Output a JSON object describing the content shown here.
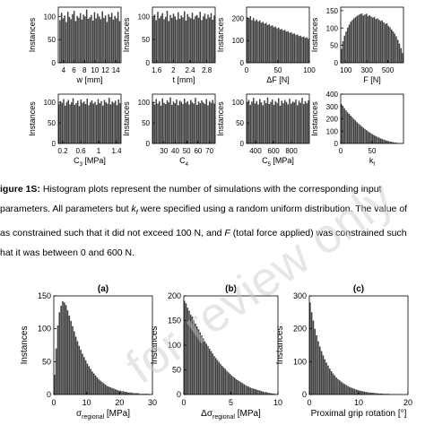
{
  "caption": {
    "label": "igure 1S:",
    "line1": " Histogram plots represent the number of simulations with the corresponding input",
    "line2a": "parameters. All parameters but ",
    "line2_k": "k",
    "line2_sub": "f",
    "line2b": " were specified using a random uniform distribution. The value of",
    "line3a": "as constrained such that it did not exceed 100 N, and ",
    "line3_f": "F",
    "line3b": " (total force applied) was constrained such",
    "line4": "hat it was between 0 and 600 N."
  },
  "watermark": {
    "text": "for review only",
    "color": "#c8c8c8"
  },
  "bar_color": "#404040",
  "chart_data": [
    {
      "id": "w",
      "type": "bar",
      "ylabel": "Instances",
      "xlabel": "w [mm]",
      "xlim": [
        3,
        15
      ],
      "ylim": [
        0,
        120
      ],
      "xticks": [
        4,
        6,
        8,
        10,
        12,
        14
      ],
      "yticks": [
        0,
        50,
        100
      ],
      "xtick_labels": [
        "4",
        "6",
        "8",
        "10",
        "12",
        "14"
      ],
      "ytick_labels": [
        "0",
        "50",
        "100"
      ],
      "bins": 40,
      "values": [
        92,
        108,
        96,
        102,
        88,
        110,
        99,
        94,
        105,
        112,
        90,
        101,
        97,
        107,
        93,
        104,
        100,
        115,
        95,
        98,
        103,
        91,
        109,
        96,
        106,
        100,
        94,
        111,
        97,
        102,
        88,
        105,
        99,
        108,
        93,
        101,
        96,
        110,
        90,
        103
      ]
    },
    {
      "id": "t",
      "type": "bar",
      "ylabel": "Instances",
      "xlabel": "t [mm]",
      "xlim": [
        1.5,
        3.0
      ],
      "ylim": [
        0,
        120
      ],
      "xticks": [
        1.6,
        2.0,
        2.4,
        2.8
      ],
      "yticks": [
        0,
        50,
        100
      ],
      "xtick_labels": [
        "1.6",
        "2",
        "2.4",
        "2.8"
      ],
      "ytick_labels": [
        "0",
        "50",
        "100"
      ],
      "bins": 40,
      "values": [
        98,
        104,
        92,
        110,
        96,
        101,
        107,
        94,
        99,
        112,
        90,
        103,
        97,
        106,
        100,
        93,
        109,
        95,
        102,
        98,
        111,
        91,
        105,
        99,
        96,
        108,
        94,
        101,
        103,
        97,
        110,
        92,
        100,
        106,
        95,
        104,
        98,
        107,
        93,
        102
      ]
    },
    {
      "id": "dF",
      "type": "bar",
      "ylabel": "Instances",
      "xlabel": "ΔF [N]",
      "xlim": [
        0,
        100
      ],
      "ylim": [
        0,
        250
      ],
      "xticks": [
        0,
        50,
        100
      ],
      "yticks": [
        0,
        100,
        200
      ],
      "xtick_labels": [
        "0",
        "50",
        "100"
      ],
      "ytick_labels": [
        "0",
        "100",
        "200"
      ],
      "bins": 40,
      "values": [
        205,
        198,
        210,
        192,
        201,
        188,
        195,
        186,
        190,
        180,
        184,
        176,
        179,
        170,
        174,
        166,
        168,
        160,
        163,
        155,
        158,
        150,
        152,
        146,
        148,
        140,
        142,
        135,
        137,
        130,
        132,
        125,
        127,
        120,
        122,
        116,
        118,
        112,
        114,
        108
      ]
    },
    {
      "id": "F",
      "type": "bar",
      "ylabel": "Instances",
      "xlabel": "F [N]",
      "xlim": [
        50,
        650
      ],
      "ylim": [
        0,
        160
      ],
      "xticks": [
        100,
        300,
        500
      ],
      "yticks": [
        0,
        50,
        100,
        150
      ],
      "xtick_labels": [
        "100",
        "300",
        "500"
      ],
      "ytick_labels": [
        "0",
        "50",
        "100",
        "150"
      ],
      "bins": 40,
      "values": [
        40,
        62,
        78,
        90,
        101,
        110,
        118,
        123,
        128,
        131,
        135,
        138,
        140,
        142,
        136,
        139,
        141,
        134,
        137,
        133,
        130,
        132,
        126,
        128,
        124,
        120,
        122,
        116,
        112,
        114,
        106,
        102,
        96,
        90,
        84,
        76,
        66,
        55,
        42,
        28
      ]
    },
    {
      "id": "C3",
      "type": "bar",
      "ylabel": "Instances",
      "xlabel": "C3 [MPa]",
      "xlim": [
        0.1,
        1.5
      ],
      "ylim": [
        0,
        120
      ],
      "xticks": [
        0.2,
        0.6,
        1.0,
        1.4
      ],
      "yticks": [
        0,
        50,
        100
      ],
      "xtick_labels": [
        "0.2",
        "0.6",
        "1",
        "1.4"
      ],
      "ytick_labels": [
        "0",
        "50",
        "100"
      ],
      "bins": 40,
      "values": [
        96,
        103,
        99,
        108,
        92,
        101,
        106,
        95,
        100,
        110,
        94,
        98,
        104,
        91,
        107,
        99,
        102,
        96,
        109,
        93,
        100,
        105,
        97,
        101,
        94,
        108,
        98,
        103,
        92,
        106,
        100,
        97,
        111,
        95,
        102,
        99,
        104,
        93,
        107,
        98
      ]
    },
    {
      "id": "C4",
      "type": "bar",
      "ylabel": "Instances",
      "xlabel": "C4",
      "xlim": [
        20,
        75
      ],
      "ylim": [
        0,
        120
      ],
      "xticks": [
        30,
        40,
        50,
        60,
        70
      ],
      "yticks": [
        0,
        50,
        100
      ],
      "xtick_labels": [
        "30",
        "40",
        "50",
        "60",
        "70"
      ],
      "ytick_labels": [
        "0",
        "50",
        "100"
      ],
      "bins": 40,
      "values": [
        101,
        95,
        108,
        97,
        103,
        92,
        110,
        99,
        96,
        105,
        100,
        112,
        94,
        102,
        98,
        107,
        93,
        104,
        101,
        96,
        109,
        99,
        103,
        95,
        106,
        100,
        97,
        111,
        94,
        102,
        98,
        105,
        100,
        96,
        108,
        93,
        103,
        99,
        106,
        97
      ]
    },
    {
      "id": "C5",
      "type": "bar",
      "ylabel": "Instances",
      "xlabel": "C5 [MPa]",
      "xlim": [
        300,
        1000
      ],
      "ylim": [
        0,
        120
      ],
      "xticks": [
        400,
        600,
        800
      ],
      "yticks": [
        0,
        50,
        100
      ],
      "xtick_labels": [
        "400",
        "600",
        "800"
      ],
      "ytick_labels": [
        "0",
        "50",
        "100"
      ],
      "bins": 40,
      "values": [
        99,
        106,
        94,
        102,
        111,
        97,
        103,
        95,
        108,
        100,
        93,
        105,
        98,
        112,
        96,
        101,
        107,
        94,
        103,
        99,
        110,
        92,
        104,
        98,
        106,
        101,
        95,
        109,
        97,
        102,
        100,
        107,
        93,
        104,
        99,
        111,
        96,
        103,
        98,
        105
      ]
    },
    {
      "id": "kf",
      "type": "bar",
      "ylabel": "Instances",
      "xlabel": "kf",
      "xlim": [
        0,
        100
      ],
      "ylim": [
        0,
        400
      ],
      "xticks": [
        0,
        50
      ],
      "yticks": [
        0,
        100,
        200,
        300,
        400
      ],
      "xtick_labels": [
        "0",
        "50"
      ],
      "ytick_labels": [
        "0",
        "100",
        "200",
        "300",
        "400"
      ],
      "bins": 40,
      "values": [
        320,
        300,
        285,
        268,
        252,
        240,
        225,
        212,
        198,
        186,
        172,
        160,
        150,
        138,
        128,
        118,
        108,
        98,
        90,
        82,
        74,
        66,
        60,
        53,
        47,
        41,
        36,
        31,
        27,
        23,
        19,
        16,
        13,
        10,
        8,
        6,
        4,
        3,
        2,
        1
      ]
    },
    {
      "id": "a",
      "panel_title": "(a)",
      "type": "bar",
      "ylabel": "Instances",
      "xlabel": "σ regional [MPa]",
      "xlim": [
        0,
        30
      ],
      "ylim": [
        0,
        150
      ],
      "xticks": [
        0,
        10,
        20,
        30
      ],
      "yticks": [
        0,
        50,
        100,
        150
      ],
      "xtick_labels": [
        "0",
        "10",
        "20",
        "30"
      ],
      "ytick_labels": [
        "0",
        "50",
        "100",
        "150"
      ],
      "bins": 60,
      "values": [
        30,
        70,
        105,
        125,
        135,
        142,
        140,
        136,
        128,
        120,
        112,
        104,
        96,
        88,
        81,
        74,
        68,
        62,
        57,
        52,
        47,
        43,
        39,
        35,
        32,
        29,
        26,
        23,
        21,
        19,
        17,
        15,
        13,
        12,
        11,
        10,
        9,
        8,
        7,
        6,
        6,
        5,
        5,
        4,
        4,
        3,
        3,
        3,
        2,
        2,
        2,
        2,
        1,
        1,
        1,
        1,
        1,
        1,
        0,
        0
      ]
    },
    {
      "id": "b",
      "panel_title": "(b)",
      "type": "bar",
      "ylabel": "Instances",
      "xlabel": "Δσ regional [MPa]",
      "xlim": [
        0,
        10
      ],
      "ylim": [
        0,
        200
      ],
      "xticks": [
        0,
        5,
        10
      ],
      "yticks": [
        0,
        50,
        100,
        150,
        200
      ],
      "xtick_labels": [
        "0",
        "5",
        "10"
      ],
      "ytick_labels": [
        "0",
        "50",
        "100",
        "150",
        "200"
      ],
      "bins": 60,
      "values": [
        190,
        185,
        176,
        170,
        162,
        158,
        150,
        144,
        138,
        132,
        126,
        120,
        114,
        108,
        103,
        98,
        93,
        88,
        83,
        78,
        74,
        70,
        66,
        62,
        58,
        55,
        52,
        48,
        45,
        42,
        39,
        36,
        34,
        31,
        29,
        27,
        25,
        23,
        21,
        19,
        17,
        16,
        14,
        13,
        12,
        11,
        10,
        9,
        8,
        7,
        6,
        5,
        5,
        4,
        3,
        3,
        2,
        2,
        1,
        1
      ]
    },
    {
      "id": "c",
      "panel_title": "(c)",
      "type": "bar",
      "ylabel": "Instances",
      "xlabel": "Proximal grip rotation [°]",
      "xlim": [
        0,
        20
      ],
      "ylim": [
        0,
        300
      ],
      "xticks": [
        0,
        10,
        20
      ],
      "yticks": [
        0,
        100,
        200,
        300
      ],
      "xtick_labels": [
        "0",
        "10",
        "20"
      ],
      "ytick_labels": [
        "0",
        "100",
        "200",
        "300"
      ],
      "bins": 60,
      "values": [
        280,
        250,
        225,
        200,
        180,
        162,
        146,
        132,
        119,
        107,
        97,
        88,
        79,
        71,
        64,
        58,
        52,
        47,
        43,
        39,
        35,
        32,
        29,
        26,
        23,
        21,
        19,
        17,
        15,
        14,
        12,
        11,
        10,
        9,
        8,
        7,
        6,
        6,
        5,
        5,
        4,
        4,
        3,
        3,
        3,
        2,
        2,
        2,
        2,
        1,
        1,
        1,
        1,
        1,
        1,
        0,
        0,
        0,
        0,
        0
      ]
    }
  ]
}
